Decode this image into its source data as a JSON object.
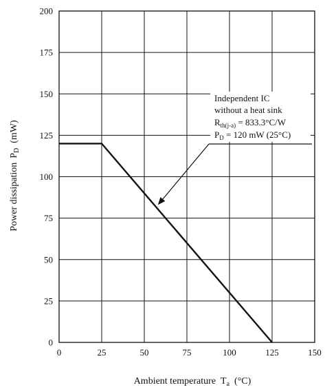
{
  "chart_data": {
    "type": "line",
    "xlabel": "Ambient temperature",
    "xlabel_symbol": "T",
    "xlabel_subscript": "a",
    "xlabel_unit": "(°C)",
    "ylabel": "Power dissipation",
    "ylabel_symbol": "P",
    "ylabel_subscript": "D",
    "ylabel_unit": "(mW)",
    "xlim": [
      0,
      150
    ],
    "ylim": [
      0,
      200
    ],
    "x_ticks": [
      0,
      25,
      50,
      75,
      100,
      125,
      150
    ],
    "y_ticks": [
      0,
      25,
      50,
      75,
      100,
      125,
      150,
      175,
      200
    ],
    "grid": true,
    "series": [
      {
        "x": [
          0,
          25,
          125
        ],
        "y": [
          120,
          120,
          0
        ]
      }
    ],
    "annotation": {
      "line1": "Independent IC",
      "line2": "without a heat sink",
      "line3_symbol": "R",
      "line3_subscript": "th(j-a)",
      "line3_rest": " = 833.3°C/W",
      "line4_symbol": "P",
      "line4_subscript": "D",
      "line4_rest": " = 120 mW (25°C)",
      "arrow_target": {
        "x": 58,
        "y": 83
      }
    }
  }
}
